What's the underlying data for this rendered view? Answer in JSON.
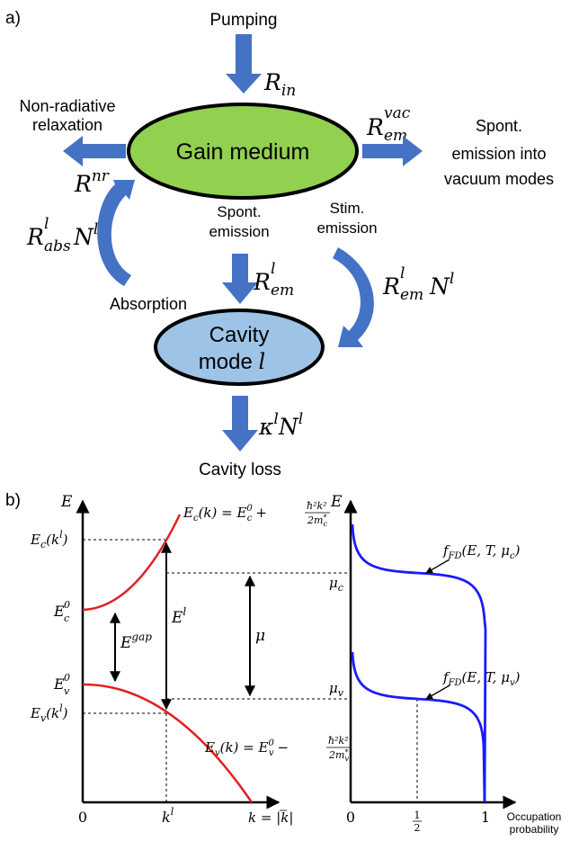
{
  "panel_a": {
    "label": "a)",
    "pumping": "Pumping",
    "rate_in": {
      "base": "R",
      "sub": "in"
    },
    "nonrad_line1": "Non-radiative",
    "nonrad_line2": "relaxation",
    "rate_nr": {
      "base": "R",
      "sup": "nr"
    },
    "rate_vac": {
      "base": "R",
      "sub": "em",
      "sup": "vac"
    },
    "spont_vac_line1": "Spont.",
    "spont_vac_line2": "emission into",
    "spont_vac_line3": "vacuum modes",
    "gain_medium": "Gain medium",
    "gain_color": "#92d050",
    "rate_abs": {
      "base": "R",
      "sub": "abs",
      "sup": "l",
      "tail": "N",
      "tail_sup": "l"
    },
    "spont_em_line1": "Spont.",
    "spont_em_line2": "emission",
    "stim_em_line1": "Stim.",
    "stim_em_line2": "emission",
    "rate_em": {
      "base": "R",
      "sub": "em",
      "sup": "l"
    },
    "rate_stim": {
      "base": "R",
      "sub": "em",
      "sup": "l",
      "tail": "N",
      "tail_sup": "l"
    },
    "absorption": "Absorption",
    "cavity_line1": "Cavity",
    "cavity_line2": "mode",
    "cavity_l": "l",
    "cavity_color": "#9dc3e6",
    "rate_loss": {
      "base": "κ",
      "sup": "l",
      "tail": "N",
      "tail_sup": "l"
    },
    "cavity_loss": "Cavity loss",
    "arrow_color": "#4472c4"
  },
  "panel_b": {
    "label": "b)",
    "left": {
      "y_axis": "E",
      "ec_kl": "E",
      "ec_kl_sub": "c",
      "ec_kl_arg": "(k",
      "ec_kl_arg_sup": "l",
      "ec_kl_close": ")",
      "ec0": "E",
      "ec0_sup": "0",
      "ec0_sub": "c",
      "ev0": "E",
      "ev0_sup": "0",
      "ev0_sub": "v",
      "ev_kl": "E",
      "ev_kl_sub": "v",
      "egap": "E",
      "egap_sup": "gap",
      "el": "E",
      "el_sup": "l",
      "mu": "μ",
      "ec_eq_lhs": "E",
      "ec_eq_lhs_sub": "c",
      "ec_eq_mid": "(k) = E",
      "ec_eq_mid_sup": "0",
      "ec_eq_mid_sub": "c",
      "plus": "+",
      "minus": "−",
      "frac_num": "ħ²k²",
      "frac_den": "2m",
      "frac_den_sup": "*",
      "frac_den_sub_c": "c",
      "ev_eq_lhs": "E",
      "ev_eq_lhs_sub": "v",
      "ev_eq_mid": "(k) = E",
      "ev_eq_mid_sup": "0",
      "ev_eq_mid_sub": "v",
      "frac_den_sub_v": "v",
      "x_zero": "0",
      "x_kl": "k",
      "x_kl_sup": "l",
      "x_label_k": "k = |",
      "x_label_vec": "k",
      "x_label_close": "|",
      "curve_color": "#e02020"
    },
    "right": {
      "y_axis": "E",
      "mu_c": "μ",
      "mu_c_sub": "c",
      "mu_v": "μ",
      "mu_v_sub": "v",
      "f_c": "f",
      "f_sub": "FD",
      "f_c_args": "(E, T, μ",
      "f_c_args_sub": "c",
      "f_close": ")",
      "f_v": "f",
      "f_v_args": "(E, T, μ",
      "f_v_args_sub": "v",
      "x_zero": "0",
      "x_half_num": "1",
      "x_half_den": "2",
      "x_one": "1",
      "x_label_line1": "Occupation",
      "x_label_line2": "probability",
      "curve_color": "#1a1aff"
    }
  }
}
